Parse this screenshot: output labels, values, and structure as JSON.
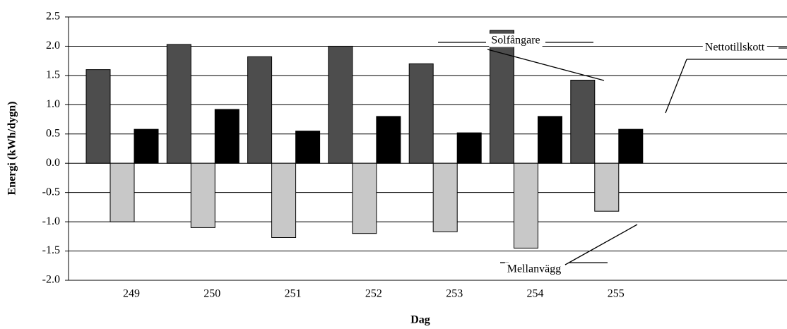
{
  "chart_data": {
    "type": "bar",
    "xlabel": "Dag",
    "ylabel": "Energi (kWh/dygn)",
    "categories": [
      "249",
      "250",
      "251",
      "252",
      "253",
      "254",
      "255"
    ],
    "series": [
      {
        "name": "Solfångare",
        "color": "#4d4d4d",
        "values": [
          1.6,
          2.03,
          1.82,
          2.0,
          1.7,
          2.27,
          1.42
        ]
      },
      {
        "name": "Mellanvägg",
        "color": "#c8c8c8",
        "values": [
          -1.0,
          -1.1,
          -1.27,
          -1.2,
          -1.17,
          -1.45,
          -0.82
        ]
      },
      {
        "name": "Nettotillskott",
        "color": "#000000",
        "values": [
          0.58,
          0.92,
          0.55,
          0.8,
          0.52,
          0.8,
          0.58
        ]
      }
    ],
    "ylim": [
      -2.0,
      2.5
    ],
    "yticks": [
      2.5,
      {
        "value": 2.0,
        "label": "2.0"
      },
      1.5,
      {
        "value": 1.0,
        "label": "1.0"
      },
      0.5,
      {
        "value": 0.0,
        "label": "0.0"
      },
      -0.5,
      {
        "value": -1.0,
        "label": "-1.0"
      },
      -1.5,
      {
        "value": -2.0,
        "label": "-2.0"
      }
    ],
    "grid": true
  }
}
